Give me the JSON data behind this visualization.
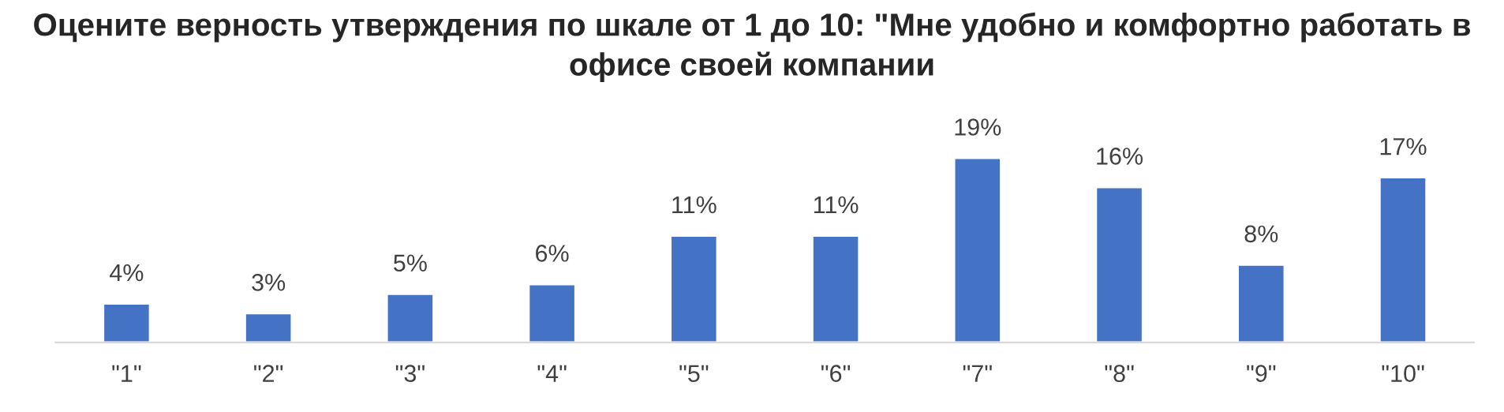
{
  "chart_data": {
    "type": "bar",
    "title": "Оцените верность утверждения по шкале от 1 до 10: \"Мне удобно и комфортно работать в офисе своей компании",
    "categories": [
      "\"1\"",
      "\"2\"",
      "\"3\"",
      "\"4\"",
      "\"5\"",
      "\"6\"",
      "\"7\"",
      "\"8\"",
      "\"9\"",
      "\"10\""
    ],
    "values": [
      4,
      3,
      5,
      6,
      11,
      11,
      19,
      16,
      8,
      17
    ],
    "value_labels": [
      "4%",
      "3%",
      "5%",
      "6%",
      "11%",
      "11%",
      "19%",
      "16%",
      "8%",
      "17%"
    ],
    "color": "#4472c4",
    "grid": false,
    "legend": false
  }
}
